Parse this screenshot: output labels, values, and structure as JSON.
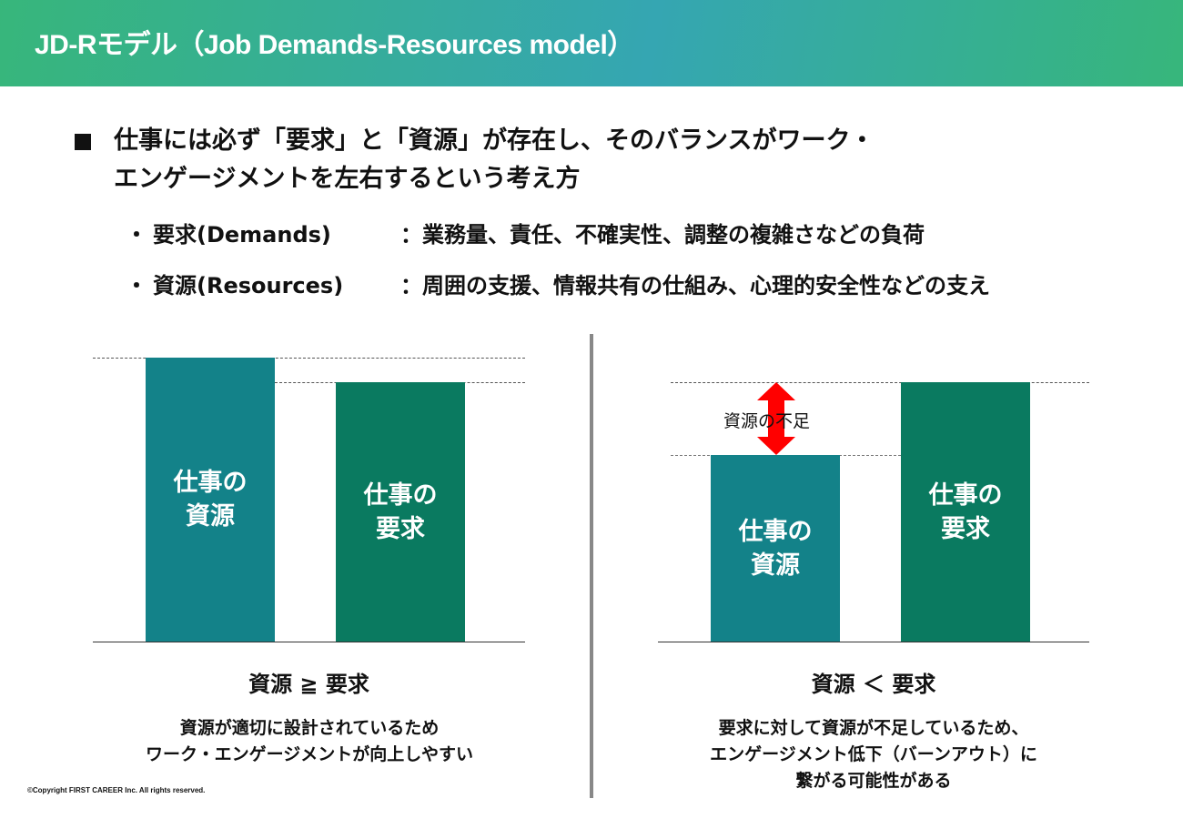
{
  "header": {
    "title": "JD-Rモデル（Job Demands-Resources model）",
    "colors": [
      "#37b67b",
      "#35a6b2"
    ]
  },
  "main": {
    "bullet_icon": "square-bullet-icon",
    "line1": "仕事には必ず「要求」と「資源」が存在し、そのバランスがワーク・",
    "line2": "エンゲージメントを左右するという考え方",
    "items": [
      {
        "term": "要求(Demands)",
        "desc": "：業務量、責任、不確実性、調整の複雑さなどの負荷"
      },
      {
        "term": "資源(Resources)",
        "desc": "：周囲の支援、情報共有の仕組み、心理的安全性などの支え"
      }
    ]
  },
  "left_panel": {
    "resource_bar": "仕事の\n資源",
    "demand_bar": "仕事の\n要求",
    "caption": "資源 ≧ 要求",
    "desc_lines": [
      "資源が適切に設計されているため",
      "ワーク・エンゲージメントが向上しやすい"
    ]
  },
  "right_panel": {
    "resource_bar": "仕事の\n資源",
    "demand_bar": "仕事の\n要求",
    "gap_label": "資源の不足",
    "caption": "資源 ＜ 要求",
    "desc_lines": [
      "要求に対して資源が不足しているため、",
      "エンゲージメント低下（バーンアウト）に",
      "繋がる可能性がある"
    ]
  },
  "colors": {
    "resource": "#138289",
    "demand": "#0a7a60",
    "arrow": "#ff0000"
  },
  "footer": {
    "copyright": "©Copyright FIRST CAREER Inc. All rights reserved."
  }
}
